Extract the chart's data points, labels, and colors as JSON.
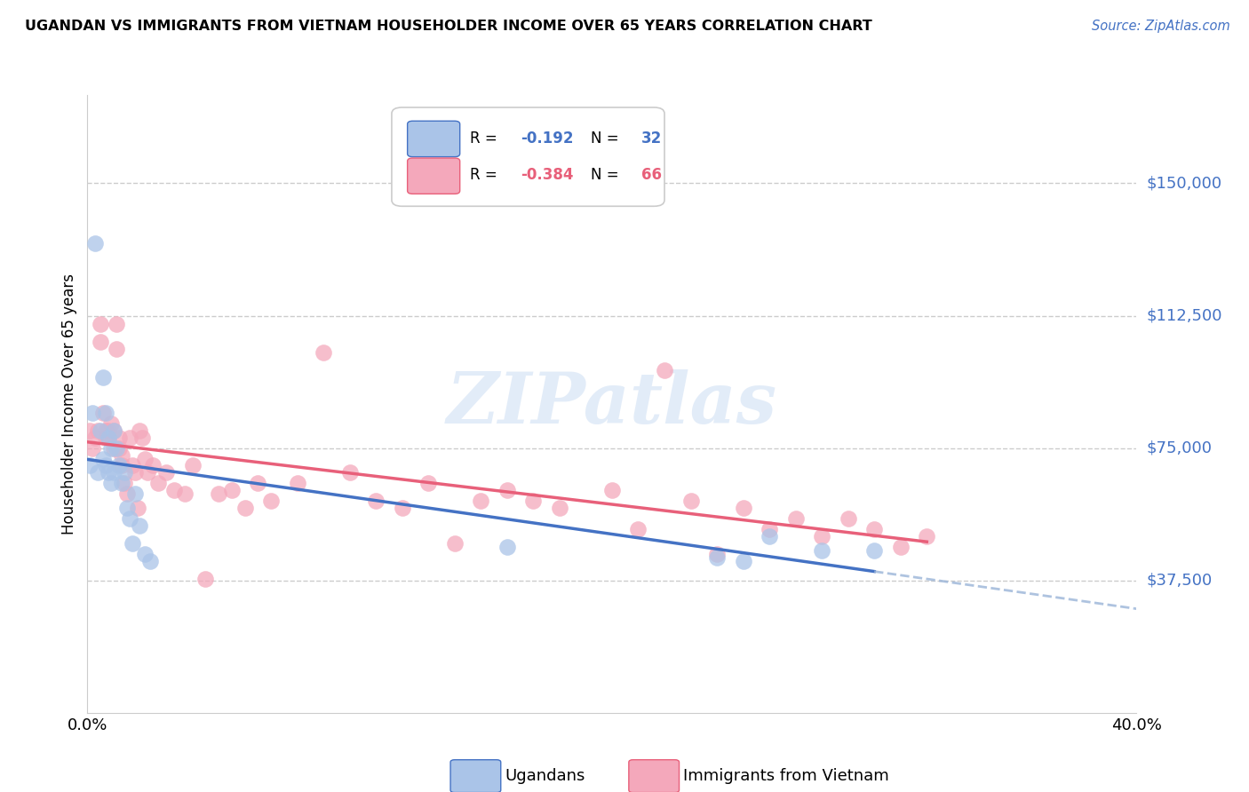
{
  "title": "UGANDAN VS IMMIGRANTS FROM VIETNAM HOUSEHOLDER INCOME OVER 65 YEARS CORRELATION CHART",
  "source": "Source: ZipAtlas.com",
  "ylabel": "Householder Income Over 65 years",
  "xlim": [
    0.0,
    0.4
  ],
  "ylim": [
    0,
    175000
  ],
  "yticks": [
    37500,
    75000,
    112500,
    150000
  ],
  "ytick_labels": [
    "$37,500",
    "$75,000",
    "$112,500",
    "$150,000"
  ],
  "xticks": [
    0.0,
    0.1,
    0.2,
    0.3,
    0.4
  ],
  "xtick_labels": [
    "0.0%",
    "",
    "",
    "",
    "40.0%"
  ],
  "legend_r1_val": "-0.192",
  "legend_n1_val": "32",
  "legend_r2_val": "-0.384",
  "legend_n2_val": "66",
  "ugandan_color": "#aac4e8",
  "vietnam_color": "#f4a8bb",
  "trend_ugandan_color": "#4472c4",
  "trend_vietnam_color": "#e8607a",
  "dash_color": "#9ab4d8",
  "watermark": "ZIPatlas",
  "ugandan_x": [
    0.001,
    0.002,
    0.003,
    0.004,
    0.005,
    0.006,
    0.006,
    0.007,
    0.007,
    0.008,
    0.008,
    0.009,
    0.009,
    0.01,
    0.01,
    0.011,
    0.012,
    0.013,
    0.014,
    0.015,
    0.016,
    0.017,
    0.018,
    0.02,
    0.022,
    0.024,
    0.16,
    0.24,
    0.25,
    0.26,
    0.28,
    0.3
  ],
  "ugandan_y": [
    70000,
    85000,
    133000,
    68000,
    80000,
    95000,
    72000,
    85000,
    70000,
    78000,
    68000,
    75000,
    65000,
    80000,
    68000,
    75000,
    70000,
    65000,
    68000,
    58000,
    55000,
    48000,
    62000,
    53000,
    45000,
    43000,
    47000,
    44000,
    43000,
    50000,
    46000,
    46000
  ],
  "vietnam_x": [
    0.001,
    0.002,
    0.003,
    0.004,
    0.005,
    0.005,
    0.006,
    0.007,
    0.007,
    0.008,
    0.008,
    0.009,
    0.01,
    0.01,
    0.011,
    0.011,
    0.012,
    0.012,
    0.013,
    0.013,
    0.014,
    0.015,
    0.016,
    0.017,
    0.018,
    0.019,
    0.02,
    0.021,
    0.022,
    0.023,
    0.025,
    0.027,
    0.03,
    0.033,
    0.037,
    0.04,
    0.045,
    0.05,
    0.055,
    0.06,
    0.065,
    0.07,
    0.08,
    0.09,
    0.1,
    0.11,
    0.12,
    0.13,
    0.14,
    0.15,
    0.16,
    0.17,
    0.18,
    0.2,
    0.21,
    0.22,
    0.23,
    0.24,
    0.25,
    0.26,
    0.27,
    0.28,
    0.29,
    0.3,
    0.31,
    0.32
  ],
  "vietnam_y": [
    80000,
    75000,
    78000,
    80000,
    110000,
    105000,
    85000,
    80000,
    78000,
    80000,
    78000,
    82000,
    80000,
    75000,
    110000,
    103000,
    78000,
    75000,
    73000,
    70000,
    65000,
    62000,
    78000,
    70000,
    68000,
    58000,
    80000,
    78000,
    72000,
    68000,
    70000,
    65000,
    68000,
    63000,
    62000,
    70000,
    38000,
    62000,
    63000,
    58000,
    65000,
    60000,
    65000,
    102000,
    68000,
    60000,
    58000,
    65000,
    48000,
    60000,
    63000,
    60000,
    58000,
    63000,
    52000,
    97000,
    60000,
    45000,
    58000,
    52000,
    55000,
    50000,
    55000,
    52000,
    47000,
    50000
  ]
}
